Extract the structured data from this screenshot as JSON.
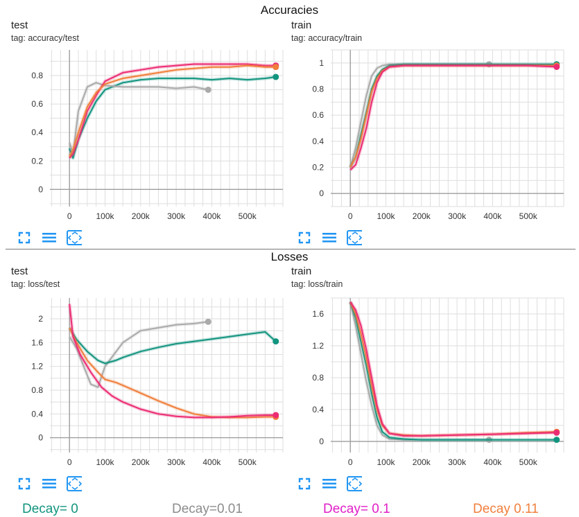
{
  "sections": [
    {
      "title": "Accuracies"
    },
    {
      "title": "Losses"
    }
  ],
  "panels": [
    {
      "title": "test",
      "tag": "tag: accuracy/test"
    },
    {
      "title": "train",
      "tag": "tag: accuracy/train"
    },
    {
      "title": "test",
      "tag": "tag: loss/test"
    },
    {
      "title": "train",
      "tag": "tag: loss/train"
    }
  ],
  "toolbar_icons": [
    "fullscreen-icon",
    "list-icon",
    "fit-domain-icon"
  ],
  "legend": [
    {
      "label": "Decay= 0",
      "color": "#12947f"
    },
    {
      "label": "Decay=0.01",
      "color": "#8c8c8c"
    },
    {
      "label": "Decay= 0.1",
      "color": "#e11ec8"
    },
    {
      "label": "Decay 0.11",
      "color": "#f07f3c"
    }
  ],
  "chart_data": [
    {
      "type": "line",
      "title": "test",
      "subtitle": "tag: accuracy/test",
      "x_ticks": [
        "0",
        "100k",
        "200k",
        "300k",
        "400k",
        "500k"
      ],
      "y_ticks": [
        "0",
        "0.2",
        "0.4",
        "0.6",
        "0.8"
      ],
      "xlim": [
        -55000,
        600000
      ],
      "ylim": [
        -0.12,
        0.98
      ],
      "grid": true,
      "series": [
        {
          "color": "#12947f",
          "x": [
            0,
            10000,
            25000,
            50000,
            75000,
            100000,
            150000,
            200000,
            250000,
            300000,
            350000,
            400000,
            450000,
            500000,
            550000,
            580000
          ],
          "y": [
            0.29,
            0.22,
            0.35,
            0.5,
            0.62,
            0.7,
            0.75,
            0.77,
            0.78,
            0.78,
            0.78,
            0.77,
            0.78,
            0.77,
            0.78,
            0.79
          ]
        },
        {
          "color": "#aaaaaa",
          "x": [
            0,
            10000,
            25000,
            50000,
            75000,
            100000,
            150000,
            200000,
            250000,
            300000,
            350000,
            390000
          ],
          "y": [
            0.33,
            0.25,
            0.55,
            0.72,
            0.75,
            0.73,
            0.72,
            0.72,
            0.72,
            0.71,
            0.72,
            0.7
          ]
        },
        {
          "color": "#ec2c73",
          "x": [
            0,
            10000,
            25000,
            50000,
            75000,
            100000,
            150000,
            200000,
            250000,
            300000,
            350000,
            400000,
            450000,
            500000,
            550000,
            580000
          ],
          "y": [
            0.22,
            0.25,
            0.35,
            0.55,
            0.66,
            0.76,
            0.82,
            0.84,
            0.86,
            0.87,
            0.88,
            0.88,
            0.88,
            0.88,
            0.87,
            0.87
          ]
        },
        {
          "color": "#f07f3c",
          "x": [
            0,
            10000,
            25000,
            50000,
            75000,
            100000,
            150000,
            200000,
            250000,
            300000,
            350000,
            400000,
            450000,
            500000,
            550000,
            580000
          ],
          "y": [
            0.23,
            0.28,
            0.4,
            0.58,
            0.68,
            0.74,
            0.78,
            0.8,
            0.82,
            0.84,
            0.85,
            0.86,
            0.86,
            0.87,
            0.86,
            0.86
          ]
        }
      ]
    },
    {
      "type": "line",
      "title": "train",
      "subtitle": "tag: accuracy/train",
      "x_ticks": [
        "0",
        "100k",
        "200k",
        "300k",
        "400k",
        "500k"
      ],
      "y_ticks": [
        "0",
        "0.2",
        "0.4",
        "0.6",
        "0.8",
        "1"
      ],
      "xlim": [
        -55000,
        600000
      ],
      "ylim": [
        -0.1,
        1.1
      ],
      "grid": true,
      "series": [
        {
          "color": "#aaaaaa",
          "x": [
            0,
            15000,
            30000,
            45000,
            60000,
            75000,
            90000,
            110000,
            150000,
            200000,
            300000,
            390000
          ],
          "y": [
            0.2,
            0.35,
            0.55,
            0.75,
            0.9,
            0.96,
            0.98,
            0.99,
            0.99,
            0.99,
            0.99,
            0.99
          ]
        },
        {
          "color": "#12947f",
          "x": [
            0,
            15000,
            30000,
            45000,
            60000,
            75000,
            90000,
            110000,
            150000,
            200000,
            300000,
            400000,
            500000,
            580000
          ],
          "y": [
            0.2,
            0.28,
            0.45,
            0.62,
            0.8,
            0.9,
            0.95,
            0.98,
            0.99,
            0.99,
            0.99,
            0.99,
            0.99,
            0.99
          ]
        },
        {
          "color": "#f07f3c",
          "x": [
            0,
            15000,
            30000,
            45000,
            60000,
            75000,
            90000,
            110000,
            150000,
            200000,
            300000,
            400000,
            500000,
            580000
          ],
          "y": [
            0.2,
            0.28,
            0.42,
            0.6,
            0.78,
            0.88,
            0.94,
            0.97,
            0.98,
            0.98,
            0.98,
            0.98,
            0.98,
            0.98
          ]
        },
        {
          "color": "#ec2c73",
          "x": [
            0,
            15000,
            30000,
            45000,
            60000,
            75000,
            90000,
            110000,
            150000,
            200000,
            300000,
            400000,
            500000,
            580000
          ],
          "y": [
            0.18,
            0.22,
            0.35,
            0.5,
            0.7,
            0.85,
            0.93,
            0.97,
            0.98,
            0.98,
            0.98,
            0.98,
            0.98,
            0.97
          ]
        }
      ]
    },
    {
      "type": "line",
      "title": "test",
      "subtitle": "tag: loss/test",
      "x_ticks": [
        "0",
        "100k",
        "200k",
        "300k",
        "400k",
        "500k"
      ],
      "y_ticks": [
        "0",
        "0.4",
        "0.8",
        "1.2",
        "1.6",
        "2"
      ],
      "xlim": [
        -55000,
        600000
      ],
      "ylim": [
        -0.25,
        2.35
      ],
      "grid": true,
      "series": [
        {
          "color": "#aaaaaa",
          "x": [
            0,
            20000,
            40000,
            60000,
            80000,
            100000,
            150000,
            200000,
            250000,
            300000,
            350000,
            390000
          ],
          "y": [
            1.7,
            1.5,
            1.2,
            0.9,
            0.85,
            1.2,
            1.6,
            1.8,
            1.85,
            1.9,
            1.92,
            1.95
          ]
        },
        {
          "color": "#12947f",
          "x": [
            0,
            20000,
            50000,
            80000,
            100000,
            130000,
            150000,
            200000,
            250000,
            300000,
            350000,
            400000,
            450000,
            500000,
            550000,
            580000
          ],
          "y": [
            1.85,
            1.65,
            1.45,
            1.3,
            1.25,
            1.3,
            1.35,
            1.45,
            1.52,
            1.58,
            1.62,
            1.66,
            1.7,
            1.74,
            1.78,
            1.62
          ]
        },
        {
          "color": "#f07f3c",
          "x": [
            0,
            20000,
            50000,
            80000,
            100000,
            130000,
            150000,
            200000,
            250000,
            300000,
            350000,
            400000,
            450000,
            500000,
            550000,
            580000
          ],
          "y": [
            1.85,
            1.6,
            1.3,
            1.1,
            0.98,
            0.93,
            0.88,
            0.75,
            0.62,
            0.5,
            0.4,
            0.35,
            0.34,
            0.34,
            0.35,
            0.35
          ]
        },
        {
          "color": "#ec2c73",
          "x": [
            0,
            10000,
            30000,
            60000,
            90000,
            120000,
            150000,
            200000,
            250000,
            300000,
            350000,
            400000,
            450000,
            500000,
            550000,
            580000
          ],
          "y": [
            2.25,
            1.7,
            1.4,
            1.1,
            0.85,
            0.7,
            0.6,
            0.48,
            0.4,
            0.36,
            0.34,
            0.34,
            0.35,
            0.37,
            0.38,
            0.38
          ]
        }
      ]
    },
    {
      "type": "line",
      "title": "train",
      "subtitle": "tag: loss/train",
      "x_ticks": [
        "0",
        "100k",
        "200k",
        "300k",
        "400k",
        "500k"
      ],
      "y_ticks": [
        "0",
        "0.4",
        "0.8",
        "1.2",
        "1.6"
      ],
      "xlim": [
        -55000,
        600000
      ],
      "ylim": [
        -0.14,
        1.8
      ],
      "grid": true,
      "series": [
        {
          "color": "#aaaaaa",
          "x": [
            0,
            15000,
            30000,
            45000,
            60000,
            75000,
            90000,
            110000,
            150000,
            200000,
            300000,
            390000
          ],
          "y": [
            1.75,
            1.45,
            1.1,
            0.75,
            0.45,
            0.2,
            0.08,
            0.03,
            0.02,
            0.02,
            0.02,
            0.02
          ]
        },
        {
          "color": "#12947f",
          "x": [
            0,
            15000,
            30000,
            45000,
            60000,
            75000,
            90000,
            110000,
            150000,
            200000,
            300000,
            400000,
            500000,
            580000
          ],
          "y": [
            1.75,
            1.55,
            1.25,
            0.95,
            0.6,
            0.3,
            0.12,
            0.05,
            0.03,
            0.02,
            0.02,
            0.02,
            0.02,
            0.02
          ]
        },
        {
          "color": "#f07f3c",
          "x": [
            0,
            15000,
            30000,
            45000,
            60000,
            75000,
            90000,
            110000,
            150000,
            200000,
            300000,
            400000,
            500000,
            580000
          ],
          "y": [
            1.75,
            1.6,
            1.35,
            1.05,
            0.7,
            0.4,
            0.2,
            0.1,
            0.08,
            0.07,
            0.08,
            0.09,
            0.11,
            0.12
          ]
        },
        {
          "color": "#ec2c73",
          "x": [
            0,
            15000,
            30000,
            45000,
            60000,
            75000,
            90000,
            110000,
            150000,
            200000,
            300000,
            400000,
            500000,
            580000
          ],
          "y": [
            1.75,
            1.65,
            1.45,
            1.15,
            0.8,
            0.45,
            0.22,
            0.1,
            0.07,
            0.07,
            0.08,
            0.09,
            0.1,
            0.11
          ]
        }
      ]
    }
  ]
}
